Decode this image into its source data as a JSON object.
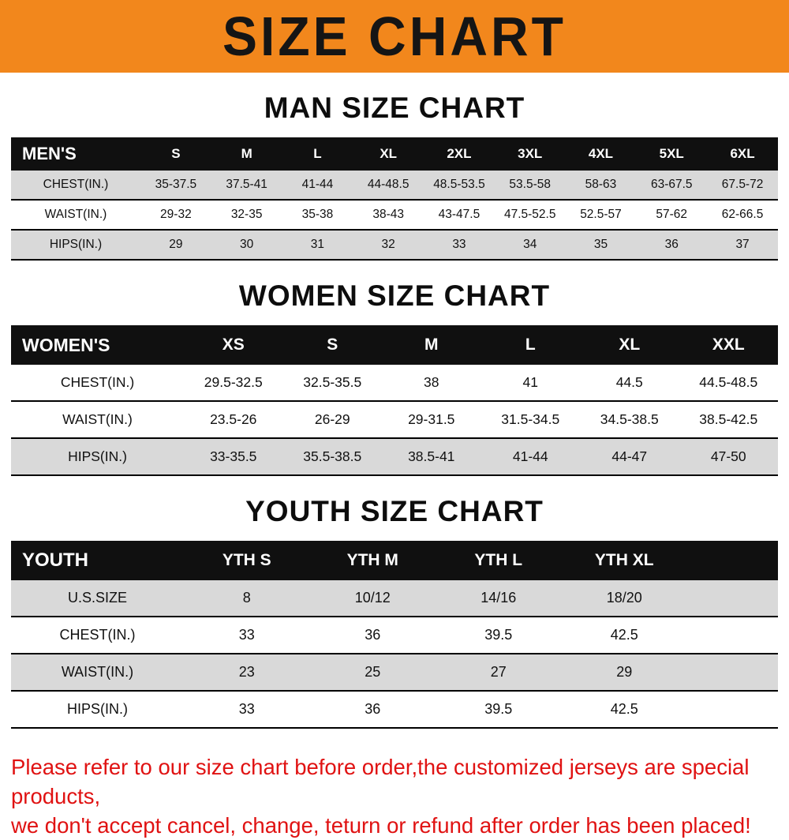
{
  "colors": {
    "banner_bg": "#F2871C",
    "header_bg": "#101010",
    "row_shade": "#d9d9d9",
    "footer_red": "#E01212"
  },
  "banner": {
    "title": "SIZE CHART"
  },
  "sections": [
    {
      "heading": "MAN SIZE CHART",
      "table": {
        "header": [
          "MEN'S",
          "S",
          "M",
          "L",
          "XL",
          "2XL",
          "3XL",
          "4XL",
          "5XL",
          "6XL"
        ],
        "rows": [
          [
            "CHEST(IN.)",
            "35-37.5",
            "37.5-41",
            "41-44",
            "44-48.5",
            "48.5-53.5",
            "53.5-58",
            "58-63",
            "63-67.5",
            "67.5-72"
          ],
          [
            "WAIST(IN.)",
            "29-32",
            "32-35",
            "35-38",
            "38-43",
            "43-47.5",
            "47.5-52.5",
            "52.5-57",
            "57-62",
            "62-66.5"
          ],
          [
            "HIPS(IN.)",
            "29",
            "30",
            "31",
            "32",
            "33",
            "34",
            "35",
            "36",
            "37"
          ]
        ]
      }
    },
    {
      "heading": "WOMEN SIZE CHART",
      "table": {
        "header": [
          "WOMEN'S",
          "XS",
          "S",
          "M",
          "L",
          "XL",
          "XXL"
        ],
        "rows": [
          [
            "CHEST(IN.)",
            "29.5-32.5",
            "32.5-35.5",
            "38",
            "41",
            "44.5",
            "44.5-48.5"
          ],
          [
            "WAIST(IN.)",
            "23.5-26",
            "26-29",
            "29-31.5",
            "31.5-34.5",
            "34.5-38.5",
            "38.5-42.5"
          ],
          [
            "HIPS(IN.)",
            "33-35.5",
            "35.5-38.5",
            "38.5-41",
            "41-44",
            "44-47",
            "47-50"
          ]
        ]
      }
    },
    {
      "heading": "YOUTH SIZE CHART",
      "table": {
        "header": [
          "YOUTH",
          "YTH S",
          "YTH M",
          "YTH L",
          "YTH XL"
        ],
        "rows": [
          [
            "U.S.SIZE",
            "8",
            "10/12",
            "14/16",
            "18/20"
          ],
          [
            "CHEST(IN.)",
            "33",
            "36",
            "39.5",
            "42.5"
          ],
          [
            "WAIST(IN.)",
            "23",
            "25",
            "27",
            "29"
          ],
          [
            "HIPS(IN.)",
            "33",
            "36",
            "39.5",
            "42.5"
          ]
        ]
      }
    }
  ],
  "footer": {
    "line1": "Please refer to our size chart before order,the customized jerseys are special products,",
    "line2": "we don't accept cancel, change, teturn or refund after order has been placed!"
  }
}
